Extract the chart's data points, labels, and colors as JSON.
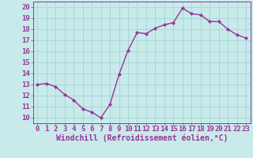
{
  "x": [
    0,
    1,
    2,
    3,
    4,
    5,
    6,
    7,
    8,
    9,
    10,
    11,
    12,
    13,
    14,
    15,
    16,
    17,
    18,
    19,
    20,
    21,
    22,
    23
  ],
  "y": [
    13.0,
    13.1,
    12.8,
    12.1,
    11.6,
    10.8,
    10.5,
    10.0,
    11.2,
    13.9,
    16.1,
    17.7,
    17.6,
    18.1,
    18.4,
    18.6,
    19.9,
    19.4,
    19.3,
    18.7,
    18.7,
    18.0,
    17.5,
    17.2
  ],
  "line_color": "#993399",
  "marker": "D",
  "marker_size": 2.2,
  "linewidth": 1.0,
  "bg_color": "#c8eaea",
  "grid_color": "#a8d8d8",
  "xlabel": "Windchill (Refroidissement éolien,°C)",
  "xlabel_fontsize": 7,
  "tick_fontsize": 6.5,
  "tick_label_color": "#993399",
  "xlim": [
    -0.5,
    23.5
  ],
  "ylim": [
    9.5,
    20.5
  ],
  "yticks": [
    10,
    11,
    12,
    13,
    14,
    15,
    16,
    17,
    18,
    19,
    20
  ],
  "xticks": [
    0,
    1,
    2,
    3,
    4,
    5,
    6,
    7,
    8,
    9,
    10,
    11,
    12,
    13,
    14,
    15,
    16,
    17,
    18,
    19,
    20,
    21,
    22,
    23
  ]
}
